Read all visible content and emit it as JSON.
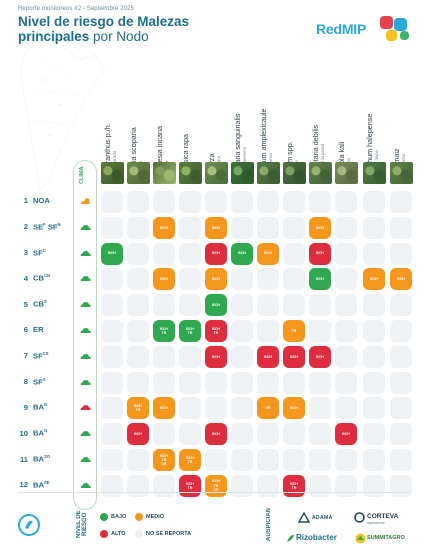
{
  "header": {
    "kicker": "Reporte monitoreos #2 - Septiembre 2025",
    "title_bold": "Nivel de riesgo de Malezas principales",
    "title_light": "por Nodo"
  },
  "logo": {
    "text": "RedMIP"
  },
  "clima_label": "CLIMA",
  "species": [
    {
      "name": "Amaranthus p./h.",
      "common": "yuyo colorado"
    },
    {
      "name": "Bassia scoparia",
      "common": "morenita"
    },
    {
      "name": "Bowlesia incana",
      "common": "perejilillo"
    },
    {
      "name": "Brassica rapa",
      "common": "nabolza"
    },
    {
      "name": "Conyza",
      "common": "rama negra"
    },
    {
      "name": "Digitaria sanguinalis",
      "common": "pasto cuaresma"
    },
    {
      "name": "Lamium amplexicaule",
      "common": "ortiga mansa"
    },
    {
      "name": "Lolium spp.",
      "common": "rye grass"
    },
    {
      "name": "Parietaria debilis",
      "common": "yuyito de la pared"
    },
    {
      "name": "Salsola kali",
      "common": "cardo ruso"
    },
    {
      "name": "Sorghum halepense",
      "common": "sorgo de alepo"
    },
    {
      "name": "Zea maiz",
      "common": "maiz guacho"
    }
  ],
  "rows": [
    {
      "num": "1",
      "node": "NOA",
      "sup": "",
      "node2": "",
      "sup2": "",
      "clima": "sun",
      "cells": [
        null,
        null,
        null,
        null,
        null,
        null,
        null,
        null,
        null,
        null,
        null,
        null
      ]
    },
    {
      "num": "2",
      "node": "SE",
      "sup": "F",
      "node2": "SF",
      "sup2": "N",
      "clima": "rain",
      "cells": [
        null,
        null,
        {
          "r": "medio",
          "t": [
            "BCH"
          ]
        },
        null,
        {
          "r": "medio",
          "t": [
            "BCH"
          ]
        },
        null,
        null,
        null,
        {
          "r": "medio",
          "t": [
            "BCH"
          ]
        },
        null,
        null,
        null
      ]
    },
    {
      "num": "3",
      "node": "SF",
      "sup": "C",
      "node2": "",
      "sup2": "",
      "clima": "cloud",
      "cells": [
        {
          "r": "bajo",
          "t": [
            "BCH"
          ]
        },
        null,
        null,
        null,
        {
          "r": "alto",
          "t": [
            "BCH"
          ]
        },
        {
          "r": "bajo",
          "t": [
            "BCH"
          ]
        },
        {
          "r": "medio",
          "t": [
            "BCH"
          ]
        },
        null,
        {
          "r": "alto",
          "t": [
            "BCH"
          ]
        },
        null,
        null,
        null
      ]
    },
    {
      "num": "4",
      "node": "CB",
      "sup": "CN",
      "node2": "",
      "sup2": "",
      "clima": "cloud",
      "cells": [
        null,
        null,
        {
          "r": "medio",
          "t": [
            "BCH"
          ]
        },
        null,
        {
          "r": "medio",
          "t": [
            "BCH"
          ]
        },
        null,
        null,
        null,
        {
          "r": "bajo",
          "t": [
            "BCH"
          ]
        },
        null,
        {
          "r": "medio",
          "t": [
            "BCH"
          ]
        },
        {
          "r": "medio",
          "t": [
            "BCH"
          ]
        }
      ]
    },
    {
      "num": "5",
      "node": "CB",
      "sup": "S",
      "node2": "",
      "sup2": "",
      "clima": "cloud",
      "cells": [
        null,
        null,
        null,
        null,
        {
          "r": "bajo",
          "t": [
            "BCH"
          ]
        },
        null,
        null,
        null,
        null,
        null,
        null,
        null
      ]
    },
    {
      "num": "6",
      "node": "ER",
      "sup": "",
      "node2": "",
      "sup2": "",
      "clima": "cloud",
      "cells": [
        null,
        null,
        {
          "r": "bajo",
          "t": [
            "BCH",
            "TR"
          ]
        },
        {
          "r": "bajo",
          "t": [
            "BCH",
            "TR"
          ]
        },
        {
          "r": "alto",
          "t": [
            "BCH",
            "TR"
          ]
        },
        null,
        null,
        {
          "r": "medio",
          "t": [
            "TR"
          ]
        },
        null,
        null,
        null,
        null
      ]
    },
    {
      "num": "7",
      "node": "SF",
      "sup": "CS",
      "node2": "",
      "sup2": "",
      "clima": "cloud",
      "cells": [
        null,
        null,
        null,
        null,
        {
          "r": "alto",
          "t": [
            "BCH"
          ]
        },
        null,
        {
          "r": "alto",
          "t": [
            "BCH"
          ]
        },
        {
          "r": "alto",
          "t": [
            "BCH"
          ]
        },
        {
          "r": "alto",
          "t": [
            "BCH"
          ]
        },
        null,
        null,
        null
      ]
    },
    {
      "num": "8",
      "node": "SF",
      "sup": "S",
      "node2": "",
      "sup2": "",
      "clima": "cloud",
      "cells": [
        null,
        null,
        null,
        null,
        null,
        null,
        null,
        null,
        null,
        null,
        null,
        null
      ]
    },
    {
      "num": "9",
      "node": "BA",
      "sup": "N",
      "node2": "",
      "sup2": "",
      "clima": "cloud-red",
      "cells": [
        null,
        {
          "r": "medio",
          "t": [
            "BCH",
            "TR"
          ]
        },
        {
          "r": "medio",
          "t": [
            "BCH"
          ]
        },
        null,
        null,
        null,
        {
          "r": "medio",
          "t": [
            "TR"
          ]
        },
        {
          "r": "medio",
          "t": [
            "BCH"
          ]
        },
        null,
        null,
        null,
        null
      ]
    },
    {
      "num": "10",
      "node": "BA",
      "sup": "O",
      "node2": "",
      "sup2": "",
      "clima": "cloud",
      "cells": [
        null,
        {
          "r": "alto",
          "t": [
            "BCH"
          ]
        },
        null,
        null,
        {
          "r": "alto",
          "t": [
            "BCH"
          ]
        },
        null,
        null,
        null,
        null,
        {
          "r": "alto",
          "t": [
            "BCH"
          ]
        },
        null,
        null
      ]
    },
    {
      "num": "11",
      "node": "BA",
      "sup": "SO",
      "node2": "",
      "sup2": "",
      "clima": "cloud",
      "cells": [
        null,
        null,
        {
          "r": "medio",
          "t": [
            "BCH",
            "TR",
            "CR"
          ]
        },
        {
          "r": "medio",
          "t": [
            "BCH",
            "TR"
          ]
        },
        null,
        null,
        null,
        null,
        null,
        null,
        null,
        null
      ]
    },
    {
      "num": "12",
      "node": "BA",
      "sup": "SE",
      "node2": "",
      "sup2": "",
      "clima": "cloud",
      "cells": [
        null,
        null,
        null,
        {
          "r": "alto",
          "t": [
            "BCH",
            "TR"
          ]
        },
        {
          "r": "medio",
          "t": [
            "BCH",
            "TR",
            "CR"
          ]
        },
        null,
        null,
        {
          "r": "alto",
          "t": [
            "BCH",
            "TR"
          ]
        },
        null,
        null,
        null,
        null
      ]
    }
  ],
  "footer": {
    "legend_title": "NIVEL DE RIESGO",
    "legend": [
      {
        "label": "BAJO",
        "color": "#2fa84f"
      },
      {
        "label": "MEDIO",
        "color": "#f5961d"
      },
      {
        "label": "ALTO",
        "color": "#dd2d3f"
      },
      {
        "label": "NO SE REPORTA",
        "color": "#eef2f5"
      }
    ],
    "sponsors_label": "AUSPICIAN",
    "sponsors": [
      "ADAMA",
      "CORTEVA",
      "Rizobacter",
      "SUMMITAGRO"
    ],
    "corteva_sub": "agriscience"
  },
  "colors": {
    "bajo": "#2fa84f",
    "medio": "#f5961d",
    "alto": "#dd2d3f",
    "none": "#eef2f5",
    "primary": "#1f6e8c"
  }
}
